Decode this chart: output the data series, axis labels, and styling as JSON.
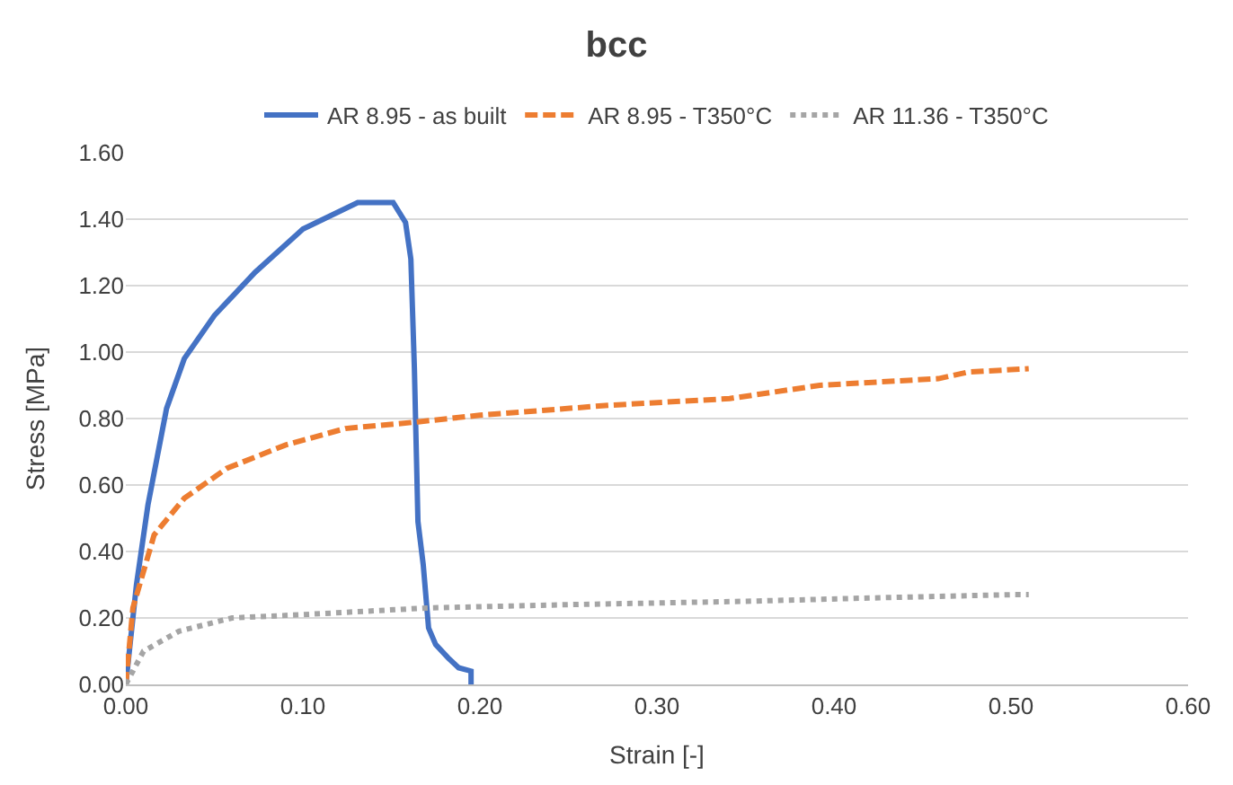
{
  "chart_data": {
    "type": "line",
    "title": "bcc",
    "xlabel": "Strain [-]",
    "ylabel": "Stress [MPa]",
    "xlim": [
      0,
      0.6
    ],
    "xticks": [
      {
        "value": 0,
        "label": "0.00"
      },
      {
        "value": 0.1,
        "label": "0.10"
      },
      {
        "value": 0.2,
        "label": "0.20"
      },
      {
        "value": 0.3,
        "label": "0.30"
      },
      {
        "value": 0.4,
        "label": "0.40"
      },
      {
        "value": 0.5,
        "label": "0.50"
      },
      {
        "value": 0.6,
        "label": "0.60"
      }
    ],
    "ylim": [
      0,
      1.6
    ],
    "yticks": [
      {
        "value": 0,
        "label": "0.00"
      },
      {
        "value": 0.2,
        "label": "0.20"
      },
      {
        "value": 0.4,
        "label": "0.40"
      },
      {
        "value": 0.6,
        "label": "0.60"
      },
      {
        "value": 0.8,
        "label": "0.80"
      },
      {
        "value": 1.0,
        "label": "1.00"
      },
      {
        "value": 1.2,
        "label": "1.20"
      },
      {
        "value": 1.4,
        "label": "1.40"
      },
      {
        "value": 1.6,
        "label": "1.60"
      }
    ],
    "grid": "y",
    "legend": "top",
    "marker": "none",
    "series": [
      {
        "name": "AR 8.95 - as built",
        "color": "#4472c4",
        "line_style": "solid",
        "x": [
          0,
          0.006,
          0.0125,
          0.023,
          0.033,
          0.05,
          0.073,
          0.1,
          0.131,
          0.151,
          0.158,
          0.161,
          0.163,
          0.165,
          0.168,
          0.171,
          0.175,
          0.182,
          0.188,
          0.195,
          0.195
        ],
        "values": [
          0,
          0.3,
          0.54,
          0.83,
          0.98,
          1.11,
          1.24,
          1.37,
          1.45,
          1.45,
          1.39,
          1.28,
          0.95,
          0.49,
          0.36,
          0.17,
          0.12,
          0.08,
          0.05,
          0.04,
          0
        ]
      },
      {
        "name": "AR 8.95 - T350°C",
        "color": "#ed7d31",
        "line_style": "dashed",
        "x": [
          0,
          0.004,
          0.016,
          0.033,
          0.057,
          0.09,
          0.124,
          0.165,
          0.2,
          0.273,
          0.341,
          0.392,
          0.425,
          0.459,
          0.476,
          0.51
        ],
        "values": [
          0,
          0.23,
          0.45,
          0.56,
          0.65,
          0.72,
          0.77,
          0.79,
          0.81,
          0.84,
          0.86,
          0.9,
          0.91,
          0.92,
          0.94,
          0.95
        ]
      },
      {
        "name": "AR 11.36 - T350°C",
        "color": "#a5a5a5",
        "line_style": "dotted",
        "x": [
          0,
          0.01,
          0.03,
          0.06,
          0.1,
          0.17,
          0.25,
          0.35,
          0.42,
          0.5,
          0.51
        ],
        "values": [
          0,
          0.1,
          0.16,
          0.2,
          0.21,
          0.23,
          0.24,
          0.25,
          0.26,
          0.27,
          0.27
        ]
      }
    ]
  }
}
